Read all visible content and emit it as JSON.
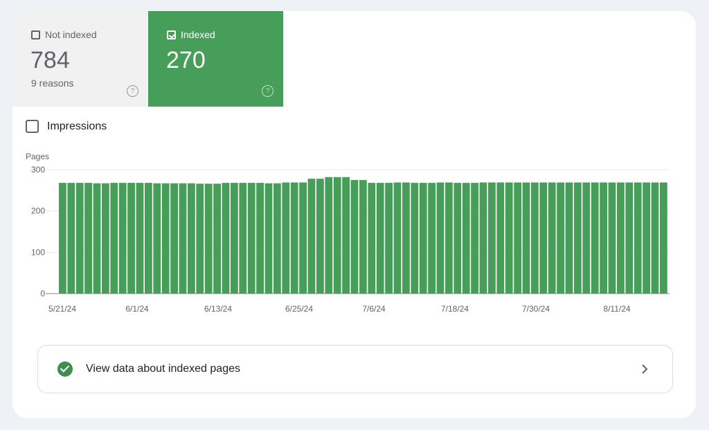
{
  "tiles": {
    "not_indexed": {
      "label": "Not indexed",
      "value": "784",
      "sub": "9 reasons",
      "help": "?"
    },
    "indexed": {
      "label": "Indexed",
      "value": "270",
      "help": "?"
    }
  },
  "impressions_label": "Impressions",
  "chart_data": {
    "type": "bar",
    "ylabel": "Pages",
    "ylim": [
      0,
      300
    ],
    "yticks": [
      "300",
      "200",
      "100",
      "0"
    ],
    "xticks": [
      "5/21/24",
      "6/1/24",
      "6/13/24",
      "6/25/24",
      "7/6/24",
      "7/18/24",
      "7/30/24",
      "8/11/24"
    ],
    "color": "#469e59",
    "values": [
      268,
      268,
      268,
      268,
      267,
      267,
      268,
      268,
      268,
      268,
      268,
      267,
      267,
      267,
      267,
      267,
      266,
      266,
      266,
      268,
      268,
      268,
      268,
      268,
      267,
      267,
      269,
      269,
      269,
      278,
      278,
      282,
      282,
      282,
      275,
      275,
      268,
      268,
      268,
      269,
      269,
      268,
      268,
      268,
      269,
      269,
      268,
      268,
      268,
      269,
      269,
      269,
      269,
      269,
      269,
      269,
      269,
      269,
      269,
      269,
      269,
      269,
      269,
      269,
      269,
      269,
      269,
      269,
      269,
      269,
      269
    ]
  },
  "view_button": {
    "label": "View data about indexed pages"
  }
}
